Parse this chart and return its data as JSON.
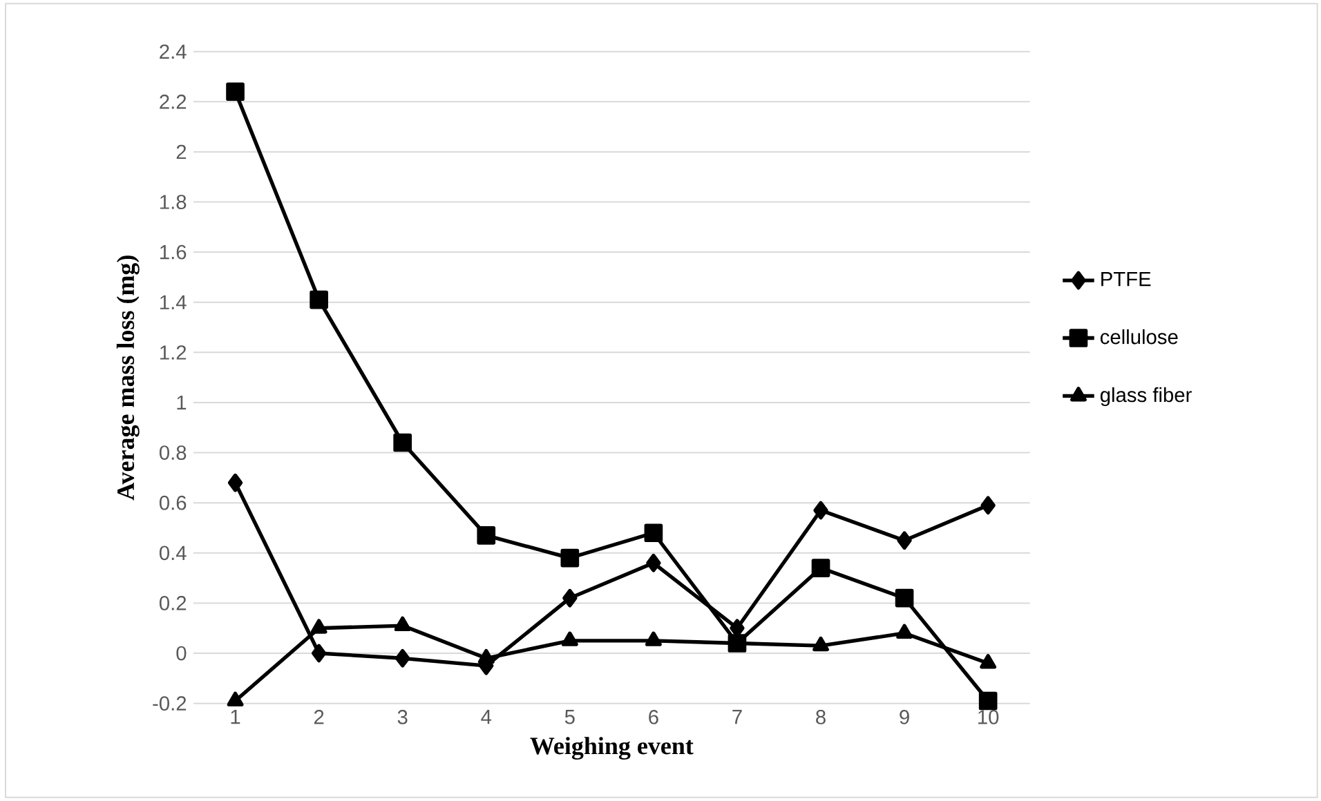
{
  "chart_data": {
    "type": "line",
    "xlabel": "Weighing event",
    "ylabel": "Average mass loss (mg)",
    "categories": [
      "1",
      "2",
      "3",
      "4",
      "5",
      "6",
      "7",
      "8",
      "9",
      "10"
    ],
    "series": [
      {
        "name": "PTFE",
        "color": "#000000",
        "marker": "diamond",
        "values": [
          0.68,
          0.0,
          -0.02,
          -0.05,
          0.22,
          0.36,
          0.1,
          0.57,
          0.45,
          0.59
        ]
      },
      {
        "name": "cellulose",
        "color": "#000000",
        "marker": "square",
        "values": [
          2.24,
          1.41,
          0.84,
          0.47,
          0.38,
          0.48,
          0.04,
          0.34,
          0.22,
          -0.19
        ]
      },
      {
        "name": "glass fiber",
        "color": "#000000",
        "marker": "triangle",
        "values": [
          -0.19,
          0.1,
          0.11,
          -0.02,
          0.05,
          0.05,
          0.04,
          0.03,
          0.08,
          -0.04
        ]
      }
    ],
    "ylim": [
      -0.2,
      2.4
    ],
    "yticks": [
      -0.2,
      0,
      0.2,
      0.4,
      0.6,
      0.8,
      1,
      1.2,
      1.4,
      1.6,
      1.8,
      2,
      2.2,
      2.4
    ],
    "grid": "y",
    "legend": "right",
    "line_style": "solid"
  }
}
